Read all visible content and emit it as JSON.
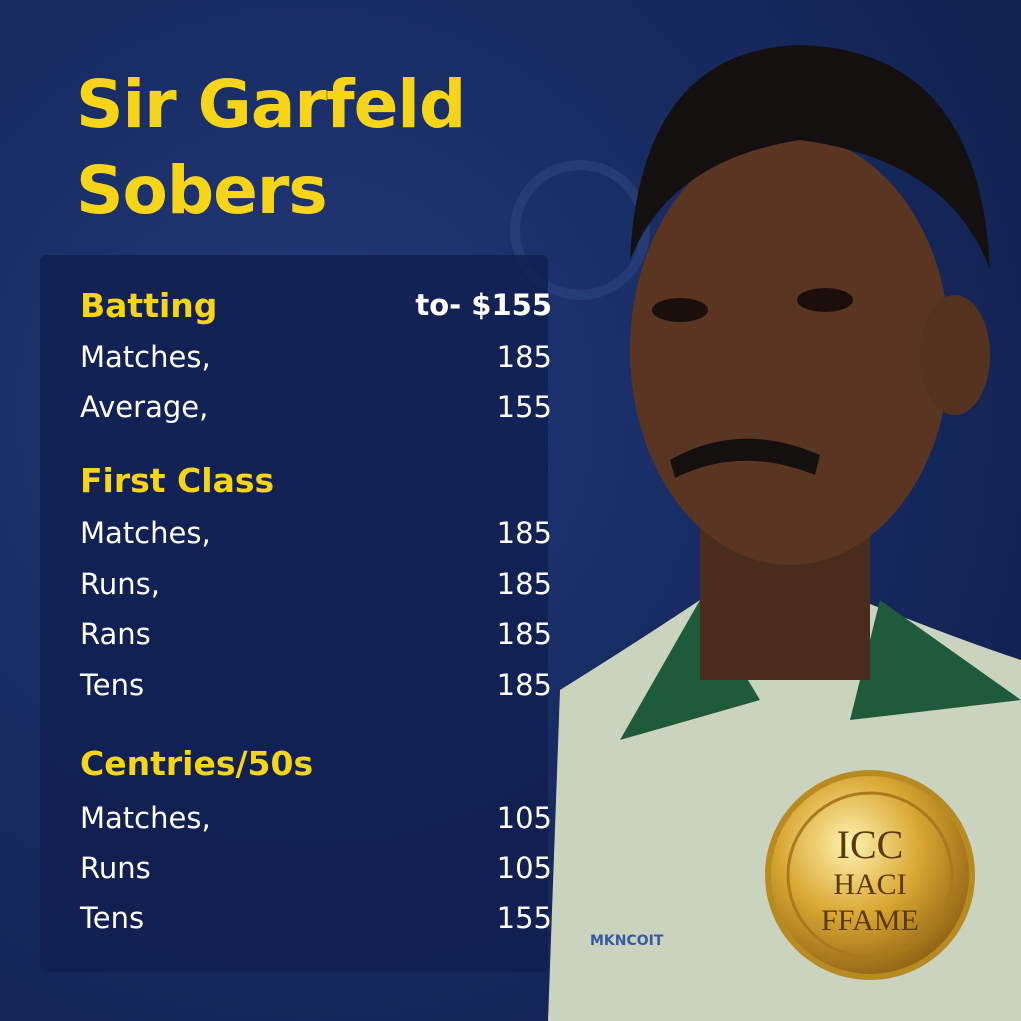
{
  "title_lines": [
    "Sir Garfeld",
    "Sobers"
  ],
  "sections": [
    {
      "heading": "Batting",
      "heading_value": "to- $155",
      "rows": [
        {
          "label": "Matches,",
          "value": 185
        },
        {
          "label": "Average,",
          "value": 155
        }
      ]
    },
    {
      "heading": "First Class",
      "rows": [
        {
          "label": "Matches,",
          "value": 185
        },
        {
          "label": "Runs,",
          "value": 185
        },
        {
          "label": "Rans",
          "value": 185
        },
        {
          "label": "Tens",
          "value": 185
        }
      ]
    },
    {
      "heading": "Centries/50s",
      "rows": [
        {
          "label": "Matches,",
          "value": 105
        },
        {
          "label": "Runs",
          "value": 105
        },
        {
          "label": "Tens",
          "value": 155
        }
      ]
    }
  ],
  "medal": {
    "lines": [
      "ICC",
      "HACI",
      "FFAME"
    ]
  },
  "logo_text": "MKNCOIT"
}
